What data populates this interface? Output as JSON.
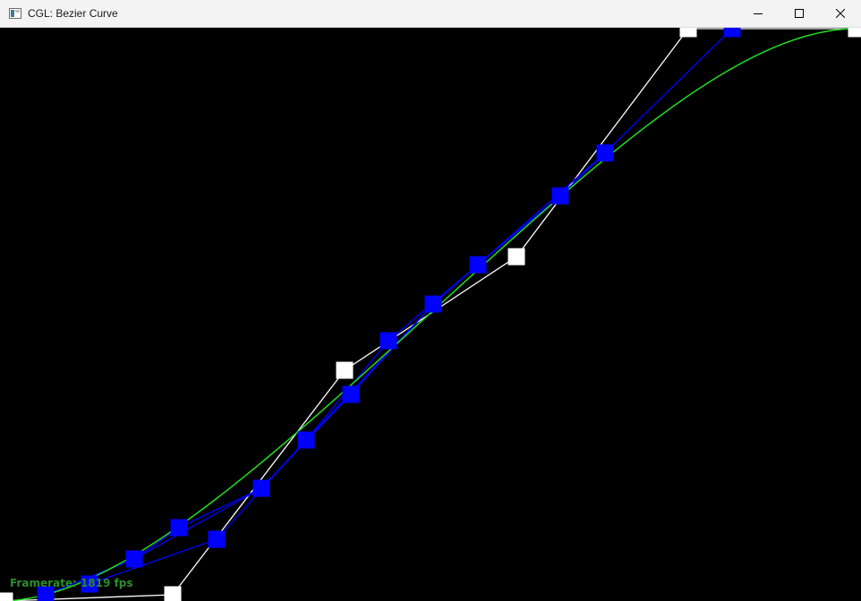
{
  "window": {
    "title": "CGL: Bezier Curve",
    "icons": {
      "app": "app-window-icon",
      "minimize": "minimize-icon",
      "maximize": "maximize-icon",
      "close": "close-icon"
    }
  },
  "status": {
    "framerate": "Framerate: 1819 fps"
  },
  "colors": {
    "background": "#000000",
    "curve": "#22dd22",
    "control_polygon": "#ffffff",
    "control_point": "#ffffff",
    "subdivision_line": "#0000ff",
    "subdivision_point": "#0000ff",
    "framerate_text": "#2a8f2a"
  }
}
